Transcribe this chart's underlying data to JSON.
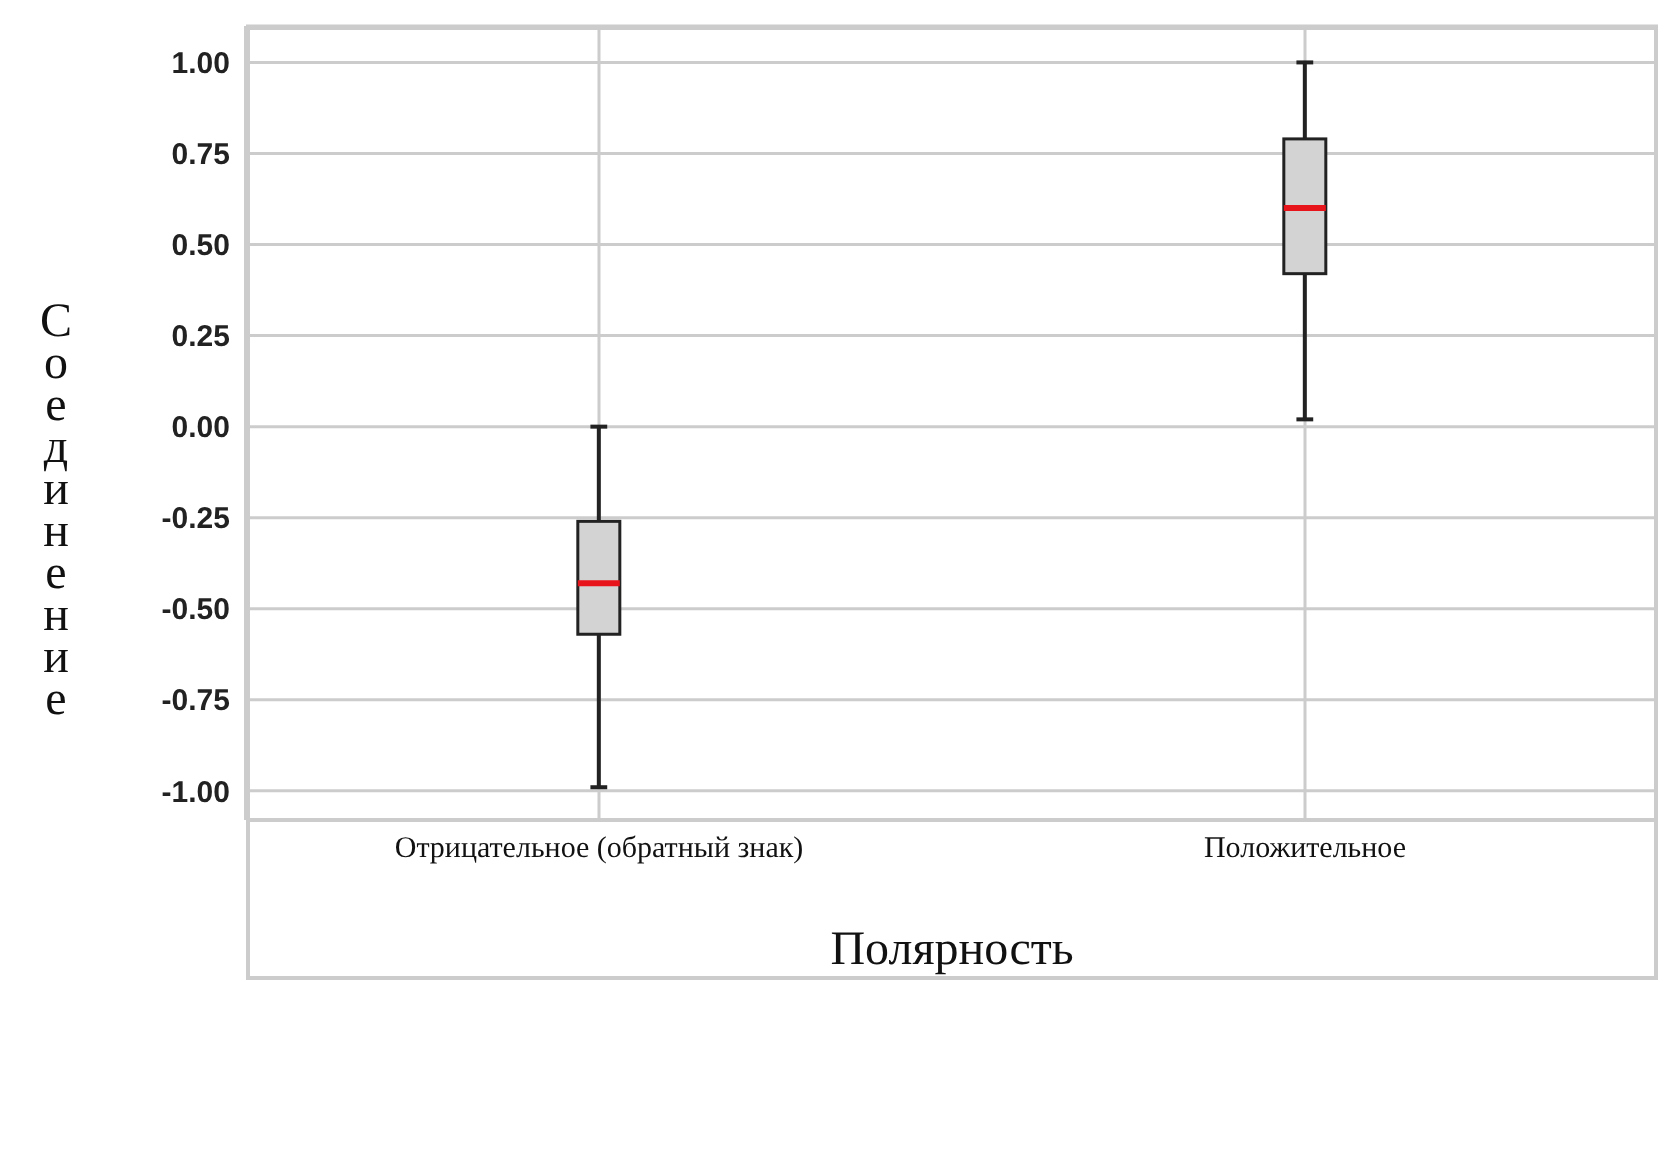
{
  "chart_data": {
    "type": "box",
    "xlabel": "Полярность",
    "ylabel": "Соединение",
    "categories": [
      "Отрицательное  (обратный знак)",
      "Положительное"
    ],
    "series": [
      {
        "color": "#d3d3d3",
        "boxes": [
          {
            "low": -0.99,
            "q1": -0.57,
            "median": -0.43,
            "q3": -0.26,
            "high": 0.0
          },
          {
            "low": 0.02,
            "q1": 0.42,
            "median": 0.6,
            "q3": 0.79,
            "high": 1.0
          }
        ]
      }
    ],
    "ylim": [
      -1.08,
      1.1
    ],
    "yticks": [
      {
        "value": -1,
        "label": "-1.00"
      },
      {
        "value": -0.75,
        "label": "-0.75"
      },
      {
        "value": -0.5,
        "label": "-0.50"
      },
      {
        "value": -0.25,
        "label": "-0.25"
      },
      {
        "value": 0,
        "label": "0.00"
      },
      {
        "value": 0.25,
        "label": "0.25"
      },
      {
        "value": 0.5,
        "label": "0.50"
      },
      {
        "value": 0.75,
        "label": "0.75"
      },
      {
        "value": 1,
        "label": "1.00"
      }
    ],
    "grid": true
  }
}
